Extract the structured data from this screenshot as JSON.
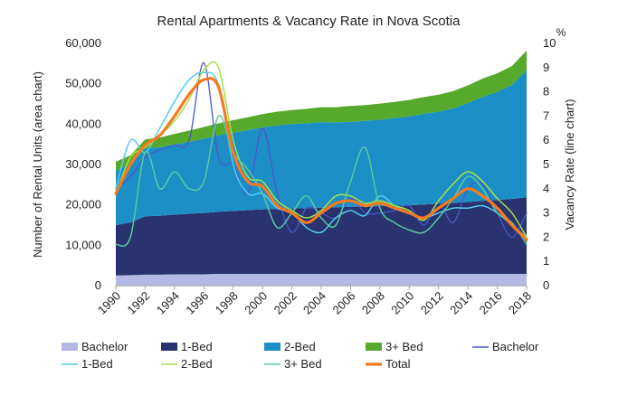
{
  "chart_data": {
    "type": "area",
    "title": "Rental Apartments & Vacancy Rate in Nova Scotia",
    "ylabel_left": "Number of Rental Units (area chart)",
    "ylabel_right": "Vacancy Rate (line chart)",
    "right_unit": "%",
    "ylim_left": [
      0,
      60000
    ],
    "ylim_right": [
      0,
      10
    ],
    "yticks_left": [
      "0",
      "10,000",
      "20,000",
      "30,000",
      "40,000",
      "50,000",
      "60,000"
    ],
    "yticks_right": [
      "0",
      "1",
      "2",
      "3",
      "4",
      "5",
      "6",
      "7",
      "8",
      "9",
      "10"
    ],
    "x": [
      1990,
      1991,
      1992,
      1993,
      1994,
      1995,
      1996,
      1997,
      1998,
      1999,
      2000,
      2001,
      2002,
      2003,
      2004,
      2005,
      2006,
      2007,
      2008,
      2009,
      2010,
      2011,
      2012,
      2013,
      2014,
      2015,
      2016,
      2017,
      2018
    ],
    "xtick_labels": [
      "1990",
      "1992",
      "1994",
      "1996",
      "1998",
      "2000",
      "2002",
      "2004",
      "2006",
      "2008",
      "2010",
      "2012",
      "2014",
      "2016",
      "2018"
    ],
    "area_series": [
      {
        "name": "Bachelor",
        "color": "#b3b8e6",
        "values": [
          2500,
          2600,
          2700,
          2700,
          2800,
          2800,
          2800,
          2900,
          2900,
          2900,
          2900,
          2900,
          2900,
          2900,
          2900,
          2900,
          2900,
          2900,
          2900,
          2900,
          2900,
          2900,
          2900,
          2900,
          2900,
          2900,
          2900,
          2900,
          2900
        ]
      },
      {
        "name": "1-Bed",
        "color": "#28336f",
        "values": [
          12500,
          13000,
          14500,
          14600,
          14800,
          15000,
          15200,
          15400,
          15600,
          15800,
          16000,
          16100,
          16200,
          16300,
          16400,
          16500,
          16600,
          16700,
          16800,
          16900,
          17000,
          17200,
          17400,
          17600,
          17800,
          18100,
          18300,
          18600,
          19000
        ]
      },
      {
        "name": "2-Bed",
        "color": "#1b8fc6",
        "values": [
          13500,
          14500,
          16800,
          17000,
          17400,
          17800,
          18400,
          18900,
          19400,
          19800,
          20300,
          20700,
          20900,
          21000,
          21200,
          21000,
          21100,
          21200,
          21400,
          21700,
          22000,
          22500,
          22800,
          23400,
          24500,
          25800,
          26800,
          28200,
          31500
        ]
      },
      {
        "name": "3+ Bed",
        "color": "#57a92c",
        "values": [
          2200,
          2200,
          2200,
          2400,
          2600,
          2800,
          2900,
          3000,
          3100,
          3200,
          3300,
          3400,
          3500,
          3600,
          3700,
          3800,
          3900,
          3900,
          4000,
          4000,
          4100,
          4100,
          4200,
          4300,
          4400,
          4500,
          4600,
          4700,
          4800
        ]
      }
    ],
    "line_series": [
      {
        "name": "Bachelor",
        "color": "#4b57c9",
        "width": 1.3,
        "values": [
          4.0,
          4.5,
          5.3,
          5.6,
          5.8,
          6.0,
          9.2,
          5.3,
          5.0,
          3.8,
          6.5,
          3.8,
          2.2,
          3.2,
          3.0,
          2.8,
          3.6,
          3.0,
          3.0,
          3.1,
          3.3,
          2.5,
          3.4,
          2.6,
          4.0,
          4.2,
          3.0,
          2.0,
          3.0
        ]
      },
      {
        "name": "1-Bed",
        "color": "#55ccf0",
        "width": 1.5,
        "values": [
          4.0,
          6.0,
          5.5,
          6.5,
          7.6,
          8.5,
          8.8,
          8.3,
          5.0,
          3.8,
          3.8,
          3.2,
          3.0,
          2.4,
          2.2,
          2.8,
          3.1,
          2.9,
          3.7,
          3.3,
          3.0,
          2.8,
          3.0,
          3.2,
          3.2,
          3.3,
          3.0,
          2.5,
          2.0
        ]
      },
      {
        "name": "2-Bed",
        "color": "#a6e048",
        "width": 1.5,
        "values": [
          3.8,
          5.3,
          5.7,
          6.2,
          6.8,
          7.7,
          8.9,
          9.0,
          6.0,
          4.5,
          4.3,
          3.5,
          3.1,
          2.8,
          3.1,
          3.7,
          3.7,
          3.4,
          3.5,
          3.3,
          3.1,
          2.7,
          3.5,
          4.2,
          4.7,
          4.3,
          3.6,
          3.0,
          2.0
        ]
      },
      {
        "name": "3+ Bed",
        "color": "#5cc8a0",
        "width": 1.5,
        "values": [
          1.7,
          2.0,
          5.5,
          4.0,
          4.7,
          4.0,
          4.3,
          7.0,
          5.5,
          4.8,
          3.8,
          2.4,
          3.0,
          3.7,
          2.8,
          2.5,
          4.3,
          5.7,
          3.2,
          2.6,
          2.3,
          2.2,
          2.8,
          3.6,
          4.5,
          4.0,
          3.0,
          2.6,
          1.7
        ]
      },
      {
        "name": "Total",
        "color": "#f47a20",
        "width": 3.2,
        "values": [
          3.8,
          5.0,
          5.8,
          6.2,
          7.0,
          7.9,
          8.5,
          8.2,
          5.5,
          4.3,
          4.1,
          3.3,
          3.0,
          2.6,
          3.0,
          3.4,
          3.5,
          3.3,
          3.4,
          3.2,
          3.0,
          2.8,
          3.2,
          3.6,
          4.0,
          3.7,
          3.2,
          2.5,
          1.9
        ]
      }
    ],
    "legend_position": "bottom",
    "grid": false
  }
}
